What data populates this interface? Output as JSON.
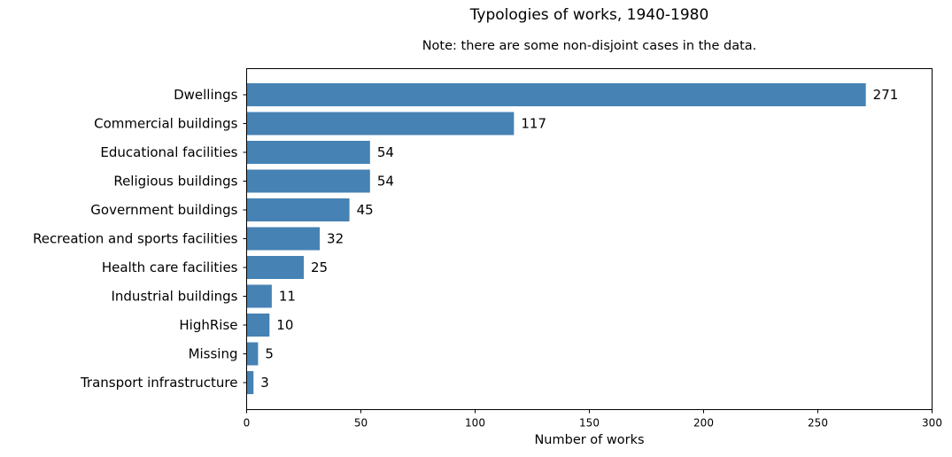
{
  "chart_data": {
    "type": "bar",
    "orientation": "horizontal",
    "title": "Typologies of works, 1940-1980",
    "subtitle": "Note: there are some non-disjoint cases in the data.",
    "xlabel": "Number of works",
    "ylabel": "",
    "xlim": [
      0,
      300
    ],
    "xticks": [
      0,
      50,
      100,
      150,
      200,
      250,
      300
    ],
    "bar_color": "#4682b4",
    "grid": false,
    "categories": [
      "Dwellings",
      "Commercial buildings",
      "Educational facilities",
      "Religious buildings",
      "Government buildings",
      "Recreation and sports facilities",
      "Health care facilities",
      "Industrial buildings",
      "HighRise",
      "Missing",
      "Transport infrastructure"
    ],
    "values": [
      271,
      117,
      54,
      54,
      45,
      32,
      25,
      11,
      10,
      5,
      3
    ]
  }
}
